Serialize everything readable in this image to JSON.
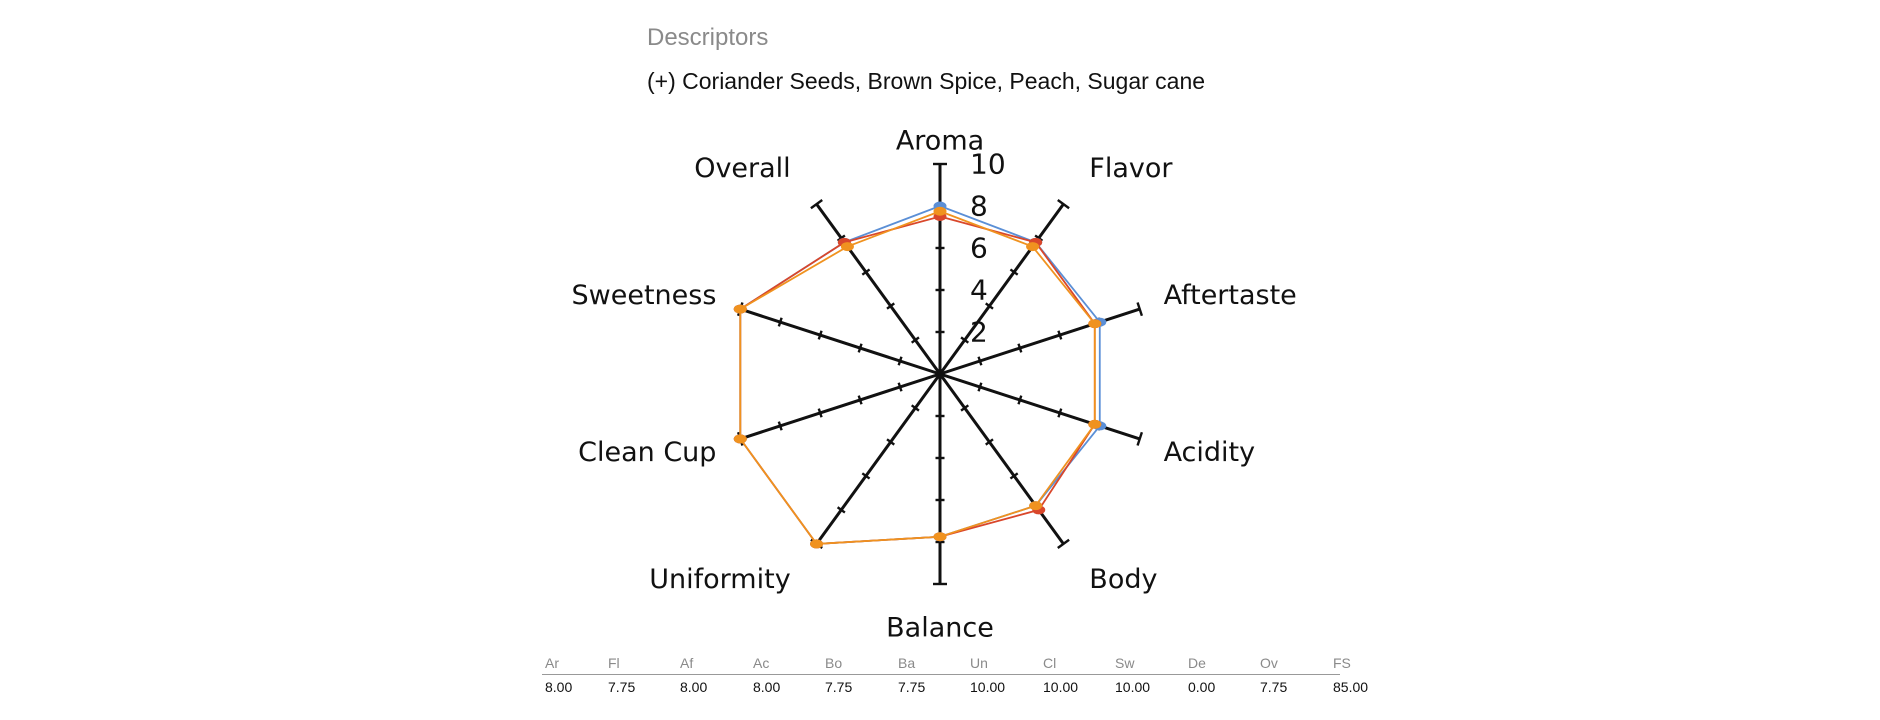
{
  "header": {
    "title": "Descriptors",
    "descriptors": "(+) Coriander Seeds, Brown Spice, Peach, Sugar cane"
  },
  "chart_data": {
    "type": "radar",
    "axes": [
      "Aroma",
      "Flavor",
      "Aftertaste",
      "Acidity",
      "Body",
      "Balance",
      "Uniformity",
      "Clean Cup",
      "Sweetness",
      "Overall"
    ],
    "range": [
      0,
      10
    ],
    "tick_labels": [
      "2",
      "4",
      "6",
      "8",
      "10"
    ],
    "series": [
      {
        "name": "series-blue",
        "color": "#5b8fd6",
        "values": [
          8.0,
          7.75,
          8.0,
          8.0,
          7.75,
          7.75,
          10.0,
          10.0,
          10.0,
          7.75
        ]
      },
      {
        "name": "series-red",
        "color": "#d9472b",
        "values": [
          7.5,
          7.75,
          7.75,
          7.75,
          8.0,
          7.75,
          10.0,
          10.0,
          10.0,
          7.75
        ]
      },
      {
        "name": "series-orange",
        "color": "#f0921f",
        "values": [
          7.75,
          7.5,
          7.75,
          7.75,
          7.75,
          7.75,
          10.0,
          10.0,
          10.0,
          7.5
        ]
      }
    ]
  },
  "table": {
    "headers": [
      "Ar",
      "Fl",
      "Af",
      "Ac",
      "Bo",
      "Ba",
      "Un",
      "Cl",
      "Sw",
      "De",
      "Ov",
      "FS"
    ],
    "values": [
      "8.00",
      "7.75",
      "8.00",
      "8.00",
      "7.75",
      "7.75",
      "10.00",
      "10.00",
      "10.00",
      "0.00",
      "7.75",
      "85.00"
    ]
  }
}
